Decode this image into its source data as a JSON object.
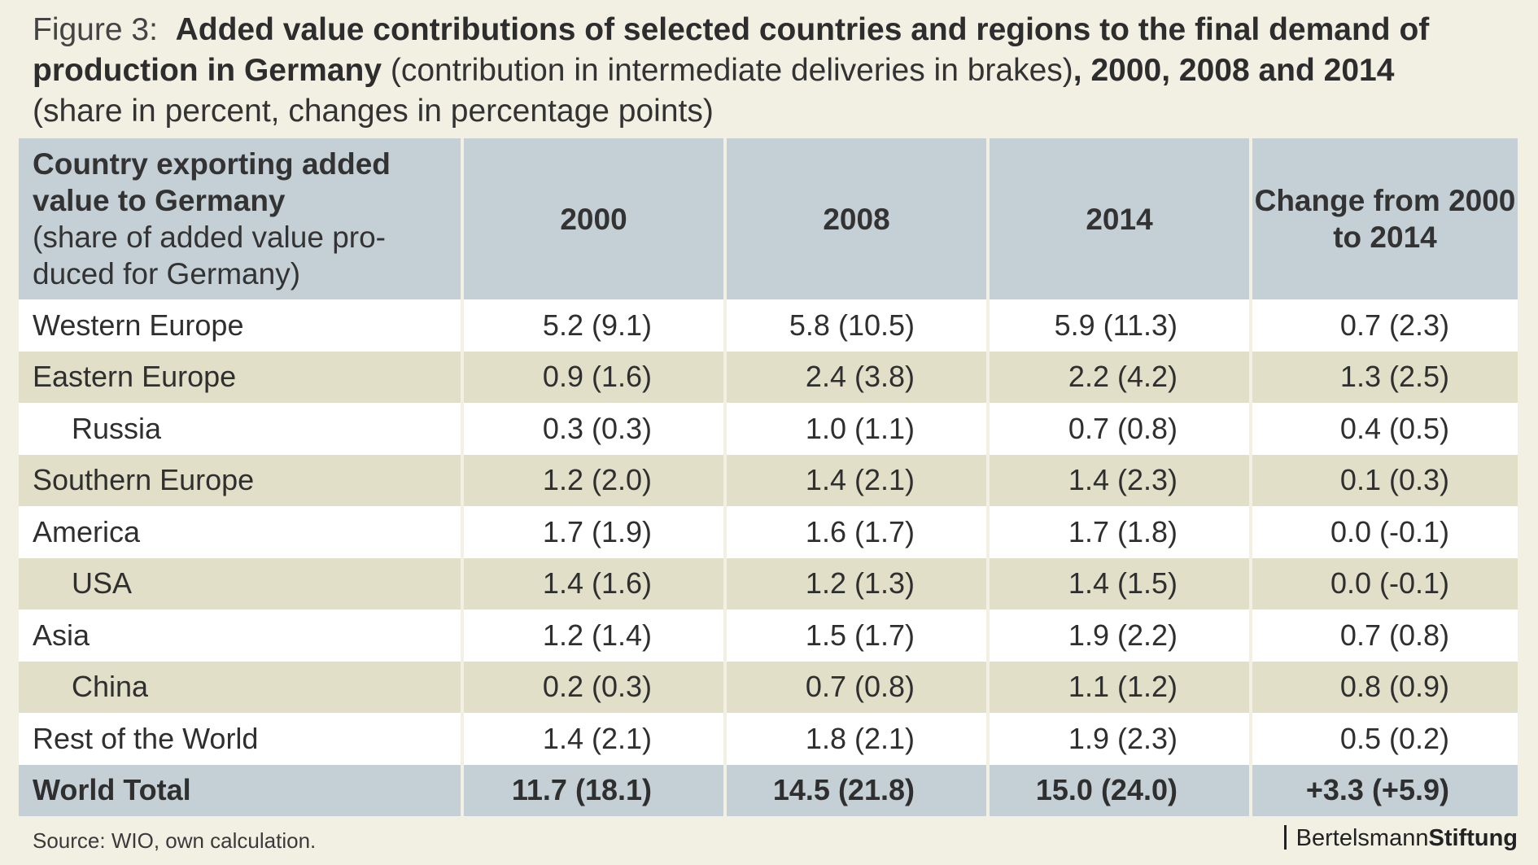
{
  "title": {
    "figure_label": "Figure 3:",
    "bold_part1": "Added value contributions of selected countries and regions to the final demand of production in Germany",
    "normal_part": " (contribution in intermediate deliveries in brakes)",
    "bold_part2": ", 2000, 2008 and 2014",
    "subtitle": "(share in percent, changes in percentage points)"
  },
  "chart_data": {
    "type": "table",
    "header": {
      "first_col_bold": "Country exporting added value to Germany",
      "first_col_sub": " (share of added value pro-duced for Germany)",
      "columns": [
        "2000",
        "2008",
        "2014",
        "Change from 2000 to 2014"
      ]
    },
    "rows": [
      {
        "label": "Western Europe",
        "indent": false,
        "values": [
          "5.2 (9.1)",
          "5.8 (10.5)",
          "5.9 (11.3)",
          "0.7 (2.3)"
        ]
      },
      {
        "label": "Eastern Europe",
        "indent": false,
        "values": [
          "0.9 (1.6)",
          "2.4 (3.8)",
          "2.2 (4.2)",
          "1.3 (2.5)"
        ]
      },
      {
        "label": "Russia",
        "indent": true,
        "values": [
          "0.3 (0.3)",
          "1.0 (1.1)",
          "0.7 (0.8)",
          "0.4 (0.5)"
        ]
      },
      {
        "label": "Southern Europe",
        "indent": false,
        "values": [
          "1.2 (2.0)",
          "1.4 (2.1)",
          "1.4 (2.3)",
          "0.1 (0.3)"
        ]
      },
      {
        "label": "America",
        "indent": false,
        "values": [
          "1.7 (1.9)",
          "1.6 (1.7)",
          "1.7 (1.8)",
          "0.0 (-0.1)"
        ]
      },
      {
        "label": "USA",
        "indent": true,
        "values": [
          "1.4 (1.6)",
          "1.2 (1.3)",
          "1.4 (1.5)",
          "0.0 (-0.1)"
        ]
      },
      {
        "label": "Asia",
        "indent": false,
        "values": [
          "1.2 (1.4)",
          "1.5 (1.7)",
          "1.9 (2.2)",
          "0.7 (0.8)"
        ]
      },
      {
        "label": "China",
        "indent": true,
        "values": [
          "0.2 (0.3)",
          "0.7 (0.8)",
          "1.1 (1.2)",
          "0.8 (0.9)"
        ]
      },
      {
        "label": "Rest of the World",
        "indent": false,
        "values": [
          "1.4 (2.1)",
          "1.8 (2.1)",
          "1.9 (2.3)",
          "0.5 (0.2)"
        ]
      }
    ],
    "total": {
      "label": "World Total",
      "values": [
        "11.7 (18.1)",
        "14.5 (21.8)",
        "15.0 (24.0)",
        "+3.3 (+5.9)"
      ]
    }
  },
  "footer": {
    "source": "Source: WIO, own calculation.",
    "logo_regular": "Bertelsmann",
    "logo_bold": "Stiftung"
  }
}
